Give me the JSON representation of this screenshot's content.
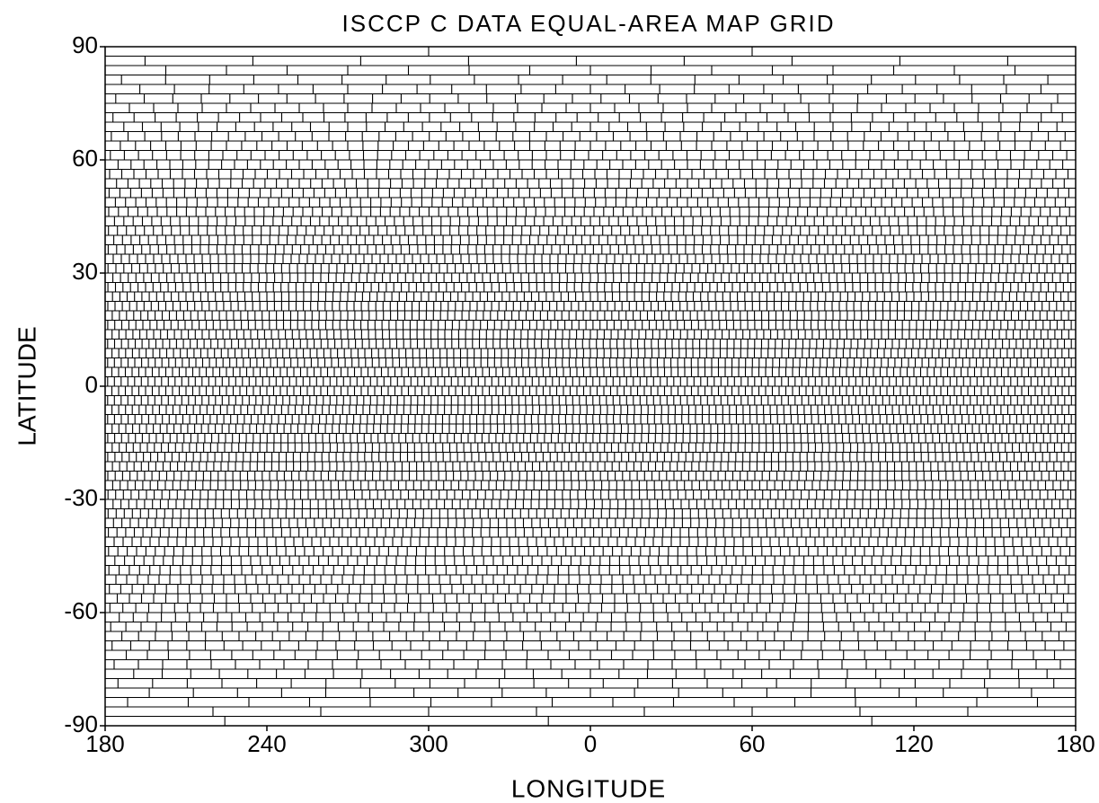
{
  "chart_data": {
    "type": "map",
    "title": "ISCCP C DATA EQUAL-AREA MAP GRID",
    "xlabel": "LONGITUDE",
    "ylabel": "LATITUDE",
    "xlim": [
      180,
      540
    ],
    "ylim": [
      -90,
      90
    ],
    "xticks": [
      180,
      240,
      300,
      {
        "value": 360,
        "label": "0"
      },
      {
        "value": 420,
        "label": "60"
      },
      {
        "value": 480,
        "label": "120"
      },
      {
        "value": 540,
        "label": "180"
      }
    ],
    "yticks": [
      -90,
      -60,
      -30,
      0,
      30,
      60,
      90
    ],
    "color": "#000000"
  }
}
